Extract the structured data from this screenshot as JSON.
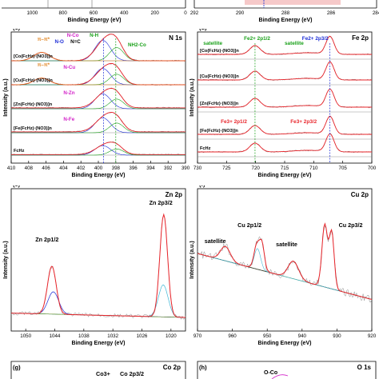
{
  "chart_data": [
    {
      "panel": "b-partial",
      "type": "line",
      "xlabel": "Binding Energy (eV)",
      "ylabel": "",
      "xlim": [
        292,
        284
      ],
      "xticks": [
        292,
        290,
        288,
        286,
        284
      ],
      "series_colors": [
        "#ff2a2a"
      ]
    },
    {
      "panel": "a-partial",
      "type": "line",
      "xlabel": "Binding Energy (eV)",
      "xlim": [
        1200,
        0
      ],
      "xticks": [
        1000,
        800,
        600,
        400,
        200,
        0
      ]
    },
    {
      "panel": "(c)",
      "title": "N 1s",
      "type": "line",
      "xlabel": "Binding Energy (eV)",
      "ylabel": "Intensity (a.u.)",
      "xlim": [
        410,
        390
      ],
      "xticks": [
        410,
        408,
        406,
        404,
        402,
        400,
        398,
        396,
        394,
        392,
        390
      ],
      "samples": [
        "[Co(FcHz)·(NO3)]n",
        "[Cu(FcHz)·(NO3)]n",
        "[Zn(FcHz)·(NO3)]n",
        "[Fe(FcHz)·(NO3)]n",
        "FcHz"
      ],
      "annotations": [
        "π–π*",
        "N-Co",
        "N-H",
        "N-O",
        "N=C",
        "NH2-Co",
        "π–π*",
        "N-Cu",
        "N-Zn",
        "N-Fe"
      ],
      "peaks": [
        {
          "label": "N-O",
          "x": 406.5
        },
        {
          "label": "N-H",
          "x": 399.8
        },
        {
          "label": "N=C",
          "x": 399.0
        },
        {
          "label": "NH2-Co",
          "x": 397.8
        }
      ]
    },
    {
      "panel": "(d)",
      "title": "Fe 2p",
      "type": "line",
      "xlabel": "Binding Energy (eV)",
      "ylabel": "Intensity (a.u.)",
      "xlim": [
        730,
        700
      ],
      "xticks": [
        730,
        725,
        720,
        715,
        710,
        705,
        700
      ],
      "samples": [
        "[Co(FcHz)·(NO3)]n",
        "[Cu(FcHz)·(NO3)]n",
        "[Zn(FcHz)·(NO3)]n",
        "[Fe(FcHz)·(NO3)]n",
        "FcHz"
      ],
      "annotations": [
        "satellite",
        "Fe2+ 2p1/2",
        "satellite",
        "Fe2+ 2p3/2",
        "Fe3+ 2p1/2",
        "Fe3+ 2p3/2"
      ],
      "peaks": [
        {
          "label": "Fe2+ 2p1/2",
          "x": 720.1
        },
        {
          "label": "Fe2+ 2p3/2",
          "x": 707.2
        }
      ]
    },
    {
      "panel": "(e)",
      "title": "Zn 2p",
      "type": "line",
      "xlabel": "Binding Energy (eV)",
      "ylabel": "Intensity (a.u.)",
      "xlim": [
        1053,
        1017
      ],
      "xticks": [
        1050,
        1044,
        1038,
        1032,
        1026,
        1020
      ],
      "annotations": [
        "Zn 2p1/2",
        "Zn 2p3/2"
      ],
      "peaks": [
        {
          "label": "Zn 2p1/2",
          "x": 1044.6
        },
        {
          "label": "Zn 2p3/2",
          "x": 1021.5
        }
      ]
    },
    {
      "panel": "(f)",
      "title": "Cu 2p",
      "type": "line",
      "xlabel": "Binding Energy (eV)",
      "ylabel": "Intensity (a.u.)",
      "xlim": [
        970,
        920
      ],
      "xticks": [
        970,
        960,
        950,
        940,
        930,
        920
      ],
      "annotations": [
        "satellite",
        "Cu 2p1/2",
        "satellite",
        "Cu 2p3/2"
      ],
      "peaks": [
        {
          "label": "satellite",
          "x": 962.0
        },
        {
          "label": "Cu 2p1/2",
          "x": 953.0
        },
        {
          "label": "Cu 2p1/2",
          "x": 951.5
        },
        {
          "label": "satellite",
          "x": 942.5
        },
        {
          "label": "Cu 2p3/2",
          "x": 933.5
        },
        {
          "label": "Cu 2p3/2",
          "x": 931.5
        }
      ]
    },
    {
      "panel": "(g)",
      "title": "Co 2p",
      "type": "line",
      "annotations": [
        "Co3+",
        "Co 2p3/2"
      ]
    },
    {
      "panel": "(h)",
      "title": "O 1s",
      "type": "line",
      "annotations": [
        "O-Co"
      ]
    }
  ],
  "colors": {
    "fit_red": "#e8242a",
    "data_grey": "#8c8c8c",
    "blue_ref": "#1a2bd6",
    "green_ref": "#18a018",
    "magenta": "#d21fc8",
    "orange": "#e0801a"
  }
}
